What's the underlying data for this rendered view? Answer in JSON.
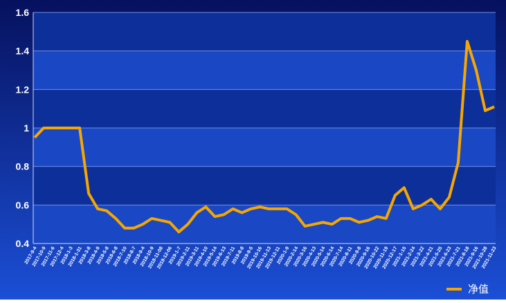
{
  "chart_data": {
    "type": "line",
    "categories": [
      "2017-9-4",
      "2017-10-9",
      "2017-11-6",
      "2017-12-4",
      "2018-1-3",
      "2018-1-31",
      "2018-3-8",
      "2018-4-9",
      "2018-5-8",
      "2018-6-8",
      "2018-7-10",
      "2018-8-7",
      "2018-9-4",
      "2018-10-9",
      "2018-11-08",
      "2018-12-06",
      "2019-1-7",
      "2019-2-11",
      "2019-3-11",
      "2019-4-10",
      "2019-5-14",
      "2019-6-13",
      "2019-7-11",
      "2019-8-8",
      "2019-9-5",
      "2019-10-16",
      "2019-11-13",
      "2019-12-11",
      "2020-1-9",
      "2020-2-14",
      "2020-3-16",
      "2020-4-13",
      "2020-5-14",
      "2020-6-14",
      "2020-7-14",
      "2020-8-11",
      "2020-9-8",
      "2020-9-16",
      "2020-10-22",
      "2020-11-19",
      "2020-12-17",
      "2021-1-15",
      "2021-2-24",
      "2021-3-22",
      "2021-4-21",
      "2021-5-25",
      "2021-6-23",
      "2021-7-21",
      "2021-8-18",
      "2021-9-16",
      "2021-10-28",
      "2021-11-23"
    ],
    "series": [
      {
        "name": "净值",
        "color": "#f5a700",
        "values": [
          0.95,
          1.0,
          1.0,
          1.0,
          1.0,
          1.0,
          0.66,
          0.58,
          0.57,
          0.53,
          0.48,
          0.48,
          0.5,
          0.53,
          0.52,
          0.51,
          0.46,
          0.5,
          0.56,
          0.59,
          0.54,
          0.55,
          0.58,
          0.56,
          0.58,
          0.59,
          0.58,
          0.58,
          0.58,
          0.55,
          0.49,
          0.5,
          0.51,
          0.5,
          0.53,
          0.53,
          0.51,
          0.52,
          0.54,
          0.53,
          0.65,
          0.69,
          0.58,
          0.6,
          0.63,
          0.58,
          0.64,
          0.82,
          1.45,
          1.3,
          1.09,
          1.11
        ]
      }
    ],
    "ylim": [
      0.4,
      1.6
    ],
    "yticks": [
      0.4,
      0.6,
      0.8,
      1,
      1.2,
      1.4,
      1.6
    ],
    "grid": true,
    "legend": "bottom-right"
  }
}
